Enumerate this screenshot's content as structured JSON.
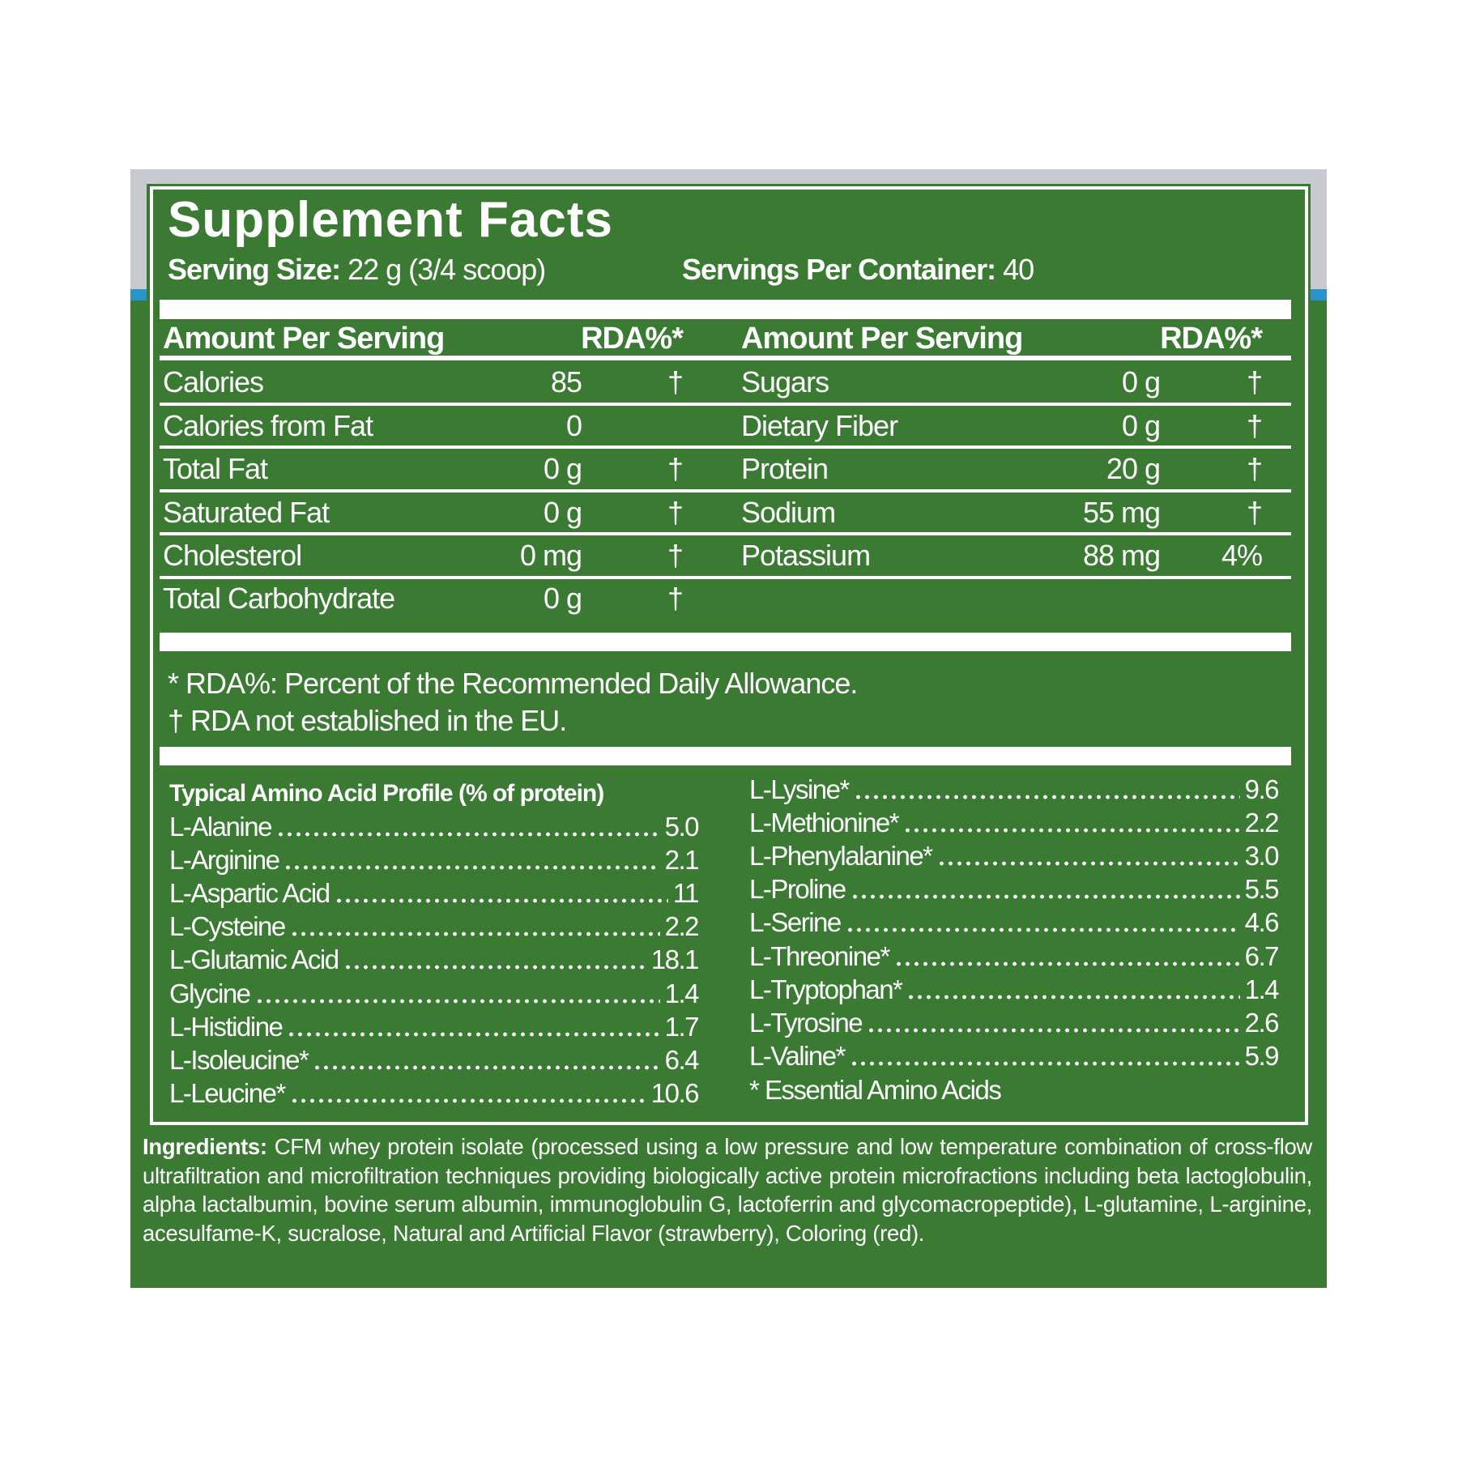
{
  "header": {
    "title": "Supplement Facts",
    "serving_size_label": "Serving Size:",
    "serving_size": "22 g (3/4 scoop)",
    "servings_label": "Servings Per Container:",
    "servings": "40"
  },
  "facts": {
    "columns": [
      {
        "header": [
          "Amount Per Serving",
          "RDA%*"
        ],
        "rows": [
          {
            "name": "Calories",
            "amount": "85",
            "rda": "†"
          },
          {
            "name": "Calories from Fat",
            "amount": "0"
          },
          {
            "name": "Total Fat",
            "amount": "0 g",
            "rda": "†"
          },
          {
            "name": "Saturated Fat",
            "amount": "0 g",
            "rda": "†"
          },
          {
            "name": "Cholesterol",
            "amount": "0 mg",
            "rda": "†"
          },
          {
            "name": "Total Carbohydrate",
            "amount": "0 g",
            "rda": "†"
          }
        ]
      },
      {
        "header": [
          "Amount Per Serving",
          "RDA%*"
        ],
        "rows": [
          {
            "name": "Sugars",
            "amount": "0 g",
            "rda": "†"
          },
          {
            "name": "Dietary Fiber",
            "amount": "0 g",
            "rda": "†"
          },
          {
            "name": "Protein",
            "amount": "20 g",
            "rda": "†"
          },
          {
            "name": "Sodium",
            "amount": "55 mg",
            "rda": "†"
          },
          {
            "name": "Potassium",
            "amount": "88 mg",
            "rda": "4%"
          }
        ]
      }
    ]
  },
  "footnotes": [
    "* RDA%: Percent of the Recommended Daily Allowance.",
    "† RDA not established in the EU."
  ],
  "amino": {
    "title": "Typical Amino Acid Profile (% of protein)",
    "columns": [
      [
        {
          "name": "L-Alanine",
          "value": "5.0"
        },
        {
          "name": "L-Arginine",
          "value": "2.1"
        },
        {
          "name": "L-Aspartic Acid",
          "value": "11"
        },
        {
          "name": "L-Cysteine",
          "value": "2.2"
        },
        {
          "name": "L-Glutamic Acid",
          "value": "18.1"
        },
        {
          "name": "Glycine",
          "value": "1.4"
        },
        {
          "name": "L-Histidine",
          "value": "1.7"
        },
        {
          "name": "L-Isoleucine*",
          "value": "6.4"
        },
        {
          "name": "L-Leucine*",
          "value": "10.6"
        }
      ],
      [
        {
          "name": "L-Lysine*",
          "value": "9.6"
        },
        {
          "name": "L-Methionine*",
          "value": "2.2"
        },
        {
          "name": "L-Phenylalanine*",
          "value": "3.0"
        },
        {
          "name": "L-Proline",
          "value": "5.5"
        },
        {
          "name": "L-Serine",
          "value": "4.6"
        },
        {
          "name": "L-Threonine*",
          "value": "6.7"
        },
        {
          "name": "L-Tryptophan*",
          "value": "1.4"
        },
        {
          "name": "L-Tyrosine",
          "value": "2.6"
        },
        {
          "name": "L-Valine*",
          "value": "5.9"
        }
      ]
    ],
    "note": "* Essential Amino Acids"
  },
  "ingredients": {
    "label": "Ingredients:",
    "text": "CFM whey protein isolate (processed using a low pressure and low temperature combination of cross-flow ultrafiltration and microfiltration techniques providing biologically active protein microfractions including beta lactoglobulin, alpha lactalbumin, bovine serum albumin, immunoglobulin G, lactoferrin and glycomacropeptide), L-glutamine, L-arginine, acesulfame-K, sucralose, Natural and Artificial Flavor (strawberry), Coloring (red)."
  }
}
